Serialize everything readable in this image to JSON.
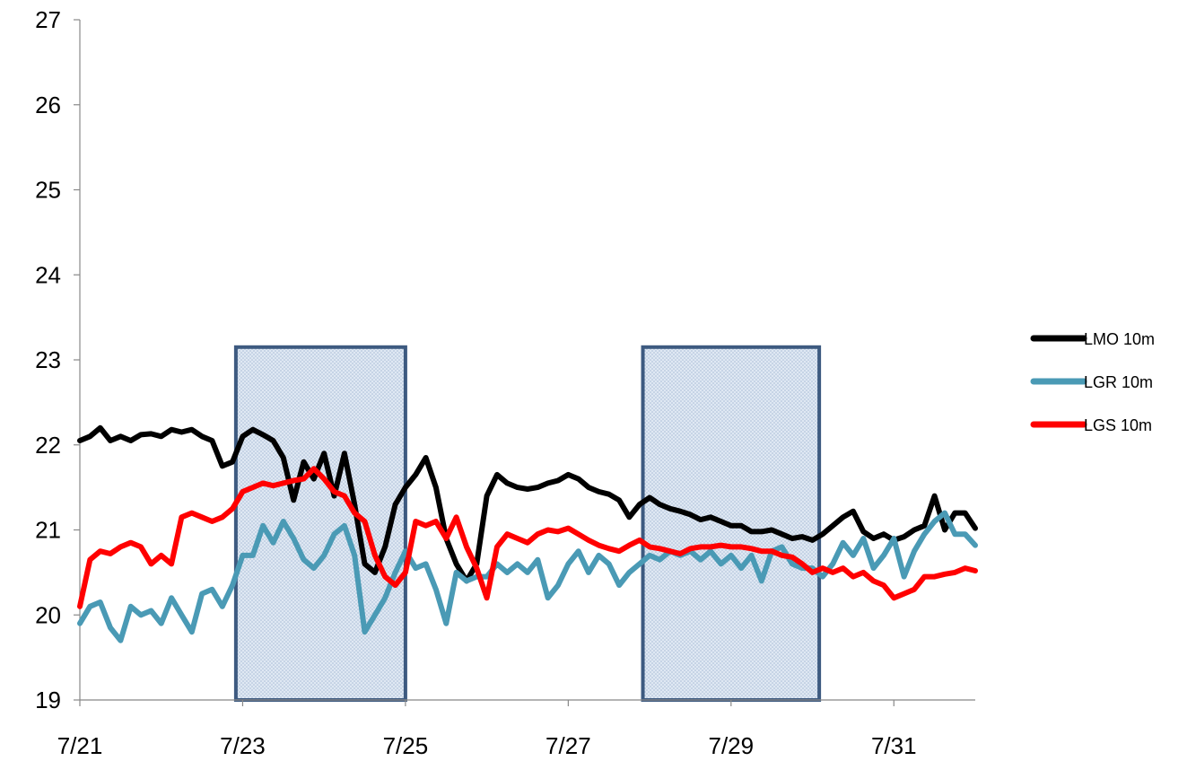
{
  "chart_data": {
    "type": "line",
    "title": "",
    "xlabel": "",
    "ylabel": "",
    "x_ticks": [
      "7/21",
      "7/23",
      "7/25",
      "7/27",
      "7/29",
      "7/31"
    ],
    "y_ticks": [
      "19",
      "20",
      "21",
      "22",
      "23",
      "24",
      "25",
      "26",
      "27"
    ],
    "xlim": [
      "7/21",
      "8/1"
    ],
    "ylim": [
      19,
      27
    ],
    "grid": false,
    "legend_position": "right",
    "highlight_regions": [
      {
        "x_start": "7/22 22:00",
        "x_end": "7/25",
        "y_top": 23.15
      },
      {
        "x_start": "7/27 22:00",
        "x_end": "7/30 02:00",
        "y_top": 23.15
      }
    ],
    "series": [
      {
        "name": "LMO 10m",
        "color": "#000000",
        "points": [
          [
            "7/21 00:00",
            22.05
          ],
          [
            "7/21 03:00",
            22.1
          ],
          [
            "7/21 06:00",
            22.2
          ],
          [
            "7/21 09:00",
            22.05
          ],
          [
            "7/21 12:00",
            22.1
          ],
          [
            "7/21 15:00",
            22.05
          ],
          [
            "7/21 18:00",
            22.12
          ],
          [
            "7/21 21:00",
            22.13
          ],
          [
            "7/22 00:00",
            22.1
          ],
          [
            "7/22 03:00",
            22.18
          ],
          [
            "7/22 06:00",
            22.15
          ],
          [
            "7/22 09:00",
            22.18
          ],
          [
            "7/22 12:00",
            22.1
          ],
          [
            "7/22 15:00",
            22.05
          ],
          [
            "7/22 18:00",
            21.75
          ],
          [
            "7/22 21:00",
            21.8
          ],
          [
            "7/23 00:00",
            22.1
          ],
          [
            "7/23 03:00",
            22.18
          ],
          [
            "7/23 06:00",
            22.12
          ],
          [
            "7/23 09:00",
            22.05
          ],
          [
            "7/23 12:00",
            21.85
          ],
          [
            "7/23 15:00",
            21.35
          ],
          [
            "7/23 18:00",
            21.8
          ],
          [
            "7/23 21:00",
            21.6
          ],
          [
            "7/24 00:00",
            21.9
          ],
          [
            "7/24 03:00",
            21.4
          ],
          [
            "7/24 06:00",
            21.9
          ],
          [
            "7/24 09:00",
            21.3
          ],
          [
            "7/24 12:00",
            20.6
          ],
          [
            "7/24 15:00",
            20.5
          ],
          [
            "7/24 18:00",
            20.8
          ],
          [
            "7/24 21:00",
            21.3
          ],
          [
            "7/25 00:00",
            21.5
          ],
          [
            "7/25 03:00",
            21.65
          ],
          [
            "7/25 06:00",
            21.85
          ],
          [
            "7/25 09:00",
            21.5
          ],
          [
            "7/25 12:00",
            20.9
          ],
          [
            "7/25 15:00",
            20.6
          ],
          [
            "7/25 18:00",
            20.4
          ],
          [
            "7/25 21:00",
            20.6
          ],
          [
            "7/26 00:00",
            21.4
          ],
          [
            "7/26 03:00",
            21.65
          ],
          [
            "7/26 06:00",
            21.55
          ],
          [
            "7/26 09:00",
            21.5
          ],
          [
            "7/26 12:00",
            21.48
          ],
          [
            "7/26 15:00",
            21.5
          ],
          [
            "7/26 18:00",
            21.55
          ],
          [
            "7/26 21:00",
            21.58
          ],
          [
            "7/27 00:00",
            21.65
          ],
          [
            "7/27 03:00",
            21.6
          ],
          [
            "7/27 06:00",
            21.5
          ],
          [
            "7/27 09:00",
            21.45
          ],
          [
            "7/27 12:00",
            21.42
          ],
          [
            "7/27 15:00",
            21.35
          ],
          [
            "7/27 18:00",
            21.15
          ],
          [
            "7/27 21:00",
            21.3
          ],
          [
            "7/28 00:00",
            21.38
          ],
          [
            "7/28 03:00",
            21.3
          ],
          [
            "7/28 06:00",
            21.25
          ],
          [
            "7/28 09:00",
            21.22
          ],
          [
            "7/28 12:00",
            21.18
          ],
          [
            "7/28 15:00",
            21.12
          ],
          [
            "7/28 18:00",
            21.15
          ],
          [
            "7/28 21:00",
            21.1
          ],
          [
            "7/29 00:00",
            21.05
          ],
          [
            "7/29 03:00",
            21.05
          ],
          [
            "7/29 06:00",
            20.98
          ],
          [
            "7/29 09:00",
            20.98
          ],
          [
            "7/29 12:00",
            21.0
          ],
          [
            "7/29 15:00",
            20.95
          ],
          [
            "7/29 18:00",
            20.9
          ],
          [
            "7/29 21:00",
            20.92
          ],
          [
            "7/30 00:00",
            20.88
          ],
          [
            "7/30 03:00",
            20.95
          ],
          [
            "7/30 06:00",
            21.05
          ],
          [
            "7/30 09:00",
            21.15
          ],
          [
            "7/30 12:00",
            21.22
          ],
          [
            "7/30 15:00",
            20.98
          ],
          [
            "7/30 18:00",
            20.9
          ],
          [
            "7/30 21:00",
            20.95
          ],
          [
            "7/31 00:00",
            20.88
          ],
          [
            "7/31 03:00",
            20.92
          ],
          [
            "7/31 06:00",
            21.0
          ],
          [
            "7/31 09:00",
            21.05
          ],
          [
            "7/31 12:00",
            21.4
          ],
          [
            "7/31 15:00",
            21.0
          ],
          [
            "7/31 18:00",
            21.2
          ],
          [
            "7/31 21:00",
            21.2
          ],
          [
            "8/1 00:00",
            21.02
          ]
        ]
      },
      {
        "name": "LGR 10m",
        "color": "#4a9ab5",
        "points": [
          [
            "7/21 00:00",
            19.9
          ],
          [
            "7/21 03:00",
            20.1
          ],
          [
            "7/21 06:00",
            20.15
          ],
          [
            "7/21 09:00",
            19.85
          ],
          [
            "7/21 12:00",
            19.7
          ],
          [
            "7/21 15:00",
            20.1
          ],
          [
            "7/21 18:00",
            20.0
          ],
          [
            "7/21 21:00",
            20.05
          ],
          [
            "7/22 00:00",
            19.9
          ],
          [
            "7/22 03:00",
            20.2
          ],
          [
            "7/22 06:00",
            20.0
          ],
          [
            "7/22 09:00",
            19.8
          ],
          [
            "7/22 12:00",
            20.25
          ],
          [
            "7/22 15:00",
            20.3
          ],
          [
            "7/22 18:00",
            20.1
          ],
          [
            "7/22 21:00",
            20.35
          ],
          [
            "7/23 00:00",
            20.7
          ],
          [
            "7/23 03:00",
            20.7
          ],
          [
            "7/23 06:00",
            21.05
          ],
          [
            "7/23 09:00",
            20.85
          ],
          [
            "7/23 12:00",
            21.1
          ],
          [
            "7/23 15:00",
            20.9
          ],
          [
            "7/23 18:00",
            20.65
          ],
          [
            "7/23 21:00",
            20.55
          ],
          [
            "7/24 00:00",
            20.7
          ],
          [
            "7/24 03:00",
            20.95
          ],
          [
            "7/24 06:00",
            21.05
          ],
          [
            "7/24 09:00",
            20.7
          ],
          [
            "7/24 12:00",
            19.8
          ],
          [
            "7/24 15:00",
            20.0
          ],
          [
            "7/24 18:00",
            20.2
          ],
          [
            "7/24 21:00",
            20.5
          ],
          [
            "7/25 00:00",
            20.75
          ],
          [
            "7/25 03:00",
            20.55
          ],
          [
            "7/25 06:00",
            20.6
          ],
          [
            "7/25 09:00",
            20.3
          ],
          [
            "7/25 12:00",
            19.9
          ],
          [
            "7/25 15:00",
            20.5
          ],
          [
            "7/25 18:00",
            20.4
          ],
          [
            "7/25 21:00",
            20.45
          ],
          [
            "7/26 00:00",
            20.45
          ],
          [
            "7/26 03:00",
            20.6
          ],
          [
            "7/26 06:00",
            20.5
          ],
          [
            "7/26 09:00",
            20.6
          ],
          [
            "7/26 12:00",
            20.5
          ],
          [
            "7/26 15:00",
            20.65
          ],
          [
            "7/26 18:00",
            20.2
          ],
          [
            "7/26 21:00",
            20.35
          ],
          [
            "7/27 00:00",
            20.6
          ],
          [
            "7/27 03:00",
            20.75
          ],
          [
            "7/27 06:00",
            20.5
          ],
          [
            "7/27 09:00",
            20.7
          ],
          [
            "7/27 12:00",
            20.6
          ],
          [
            "7/27 15:00",
            20.35
          ],
          [
            "7/27 18:00",
            20.5
          ],
          [
            "7/27 21:00",
            20.6
          ],
          [
            "7/28 00:00",
            20.7
          ],
          [
            "7/28 03:00",
            20.65
          ],
          [
            "7/28 06:00",
            20.75
          ],
          [
            "7/28 09:00",
            20.7
          ],
          [
            "7/28 12:00",
            20.75
          ],
          [
            "7/28 15:00",
            20.65
          ],
          [
            "7/28 18:00",
            20.75
          ],
          [
            "7/28 21:00",
            20.6
          ],
          [
            "7/29 00:00",
            20.7
          ],
          [
            "7/29 03:00",
            20.55
          ],
          [
            "7/29 06:00",
            20.7
          ],
          [
            "7/29 09:00",
            20.4
          ],
          [
            "7/29 12:00",
            20.75
          ],
          [
            "7/29 15:00",
            20.8
          ],
          [
            "7/29 18:00",
            20.6
          ],
          [
            "7/29 21:00",
            20.55
          ],
          [
            "7/30 00:00",
            20.55
          ],
          [
            "7/30 03:00",
            20.45
          ],
          [
            "7/30 06:00",
            20.6
          ],
          [
            "7/30 09:00",
            20.85
          ],
          [
            "7/30 12:00",
            20.7
          ],
          [
            "7/30 15:00",
            20.9
          ],
          [
            "7/30 18:00",
            20.55
          ],
          [
            "7/30 21:00",
            20.7
          ],
          [
            "7/31 00:00",
            20.9
          ],
          [
            "7/31 03:00",
            20.45
          ],
          [
            "7/31 06:00",
            20.75
          ],
          [
            "7/31 09:00",
            20.95
          ],
          [
            "7/31 12:00",
            21.1
          ],
          [
            "7/31 15:00",
            21.2
          ],
          [
            "7/31 18:00",
            20.95
          ],
          [
            "7/31 21:00",
            20.95
          ],
          [
            "8/1 00:00",
            20.82
          ]
        ]
      },
      {
        "name": "LGS 10m",
        "color": "#ff0000",
        "points": [
          [
            "7/21 00:00",
            20.1
          ],
          [
            "7/21 03:00",
            20.65
          ],
          [
            "7/21 06:00",
            20.75
          ],
          [
            "7/21 09:00",
            20.72
          ],
          [
            "7/21 12:00",
            20.8
          ],
          [
            "7/21 15:00",
            20.85
          ],
          [
            "7/21 18:00",
            20.8
          ],
          [
            "7/21 21:00",
            20.6
          ],
          [
            "7/22 00:00",
            20.7
          ],
          [
            "7/22 03:00",
            20.6
          ],
          [
            "7/22 06:00",
            21.15
          ],
          [
            "7/22 09:00",
            21.2
          ],
          [
            "7/22 12:00",
            21.15
          ],
          [
            "7/22 15:00",
            21.1
          ],
          [
            "7/22 18:00",
            21.15
          ],
          [
            "7/22 21:00",
            21.25
          ],
          [
            "7/23 00:00",
            21.45
          ],
          [
            "7/23 03:00",
            21.5
          ],
          [
            "7/23 06:00",
            21.55
          ],
          [
            "7/23 09:00",
            21.52
          ],
          [
            "7/23 12:00",
            21.55
          ],
          [
            "7/23 15:00",
            21.58
          ],
          [
            "7/23 18:00",
            21.6
          ],
          [
            "7/23 21:00",
            21.72
          ],
          [
            "7/24 00:00",
            21.6
          ],
          [
            "7/24 03:00",
            21.45
          ],
          [
            "7/24 06:00",
            21.4
          ],
          [
            "7/24 09:00",
            21.2
          ],
          [
            "7/24 12:00",
            21.1
          ],
          [
            "7/24 15:00",
            20.7
          ],
          [
            "7/24 18:00",
            20.45
          ],
          [
            "7/24 21:00",
            20.35
          ],
          [
            "7/25 00:00",
            20.5
          ],
          [
            "7/25 03:00",
            21.1
          ],
          [
            "7/25 06:00",
            21.05
          ],
          [
            "7/25 09:00",
            21.1
          ],
          [
            "7/25 12:00",
            20.9
          ],
          [
            "7/25 15:00",
            21.15
          ],
          [
            "7/25 18:00",
            20.8
          ],
          [
            "7/25 21:00",
            20.55
          ],
          [
            "7/26 00:00",
            20.2
          ],
          [
            "7/26 03:00",
            20.8
          ],
          [
            "7/26 06:00",
            20.95
          ],
          [
            "7/26 09:00",
            20.9
          ],
          [
            "7/26 12:00",
            20.85
          ],
          [
            "7/26 15:00",
            20.95
          ],
          [
            "7/26 18:00",
            21.0
          ],
          [
            "7/26 21:00",
            20.98
          ],
          [
            "7/27 00:00",
            21.02
          ],
          [
            "7/27 03:00",
            20.95
          ],
          [
            "7/27 06:00",
            20.88
          ],
          [
            "7/27 09:00",
            20.82
          ],
          [
            "7/27 12:00",
            20.78
          ],
          [
            "7/27 15:00",
            20.75
          ],
          [
            "7/27 18:00",
            20.82
          ],
          [
            "7/27 21:00",
            20.88
          ],
          [
            "7/28 00:00",
            20.8
          ],
          [
            "7/28 03:00",
            20.78
          ],
          [
            "7/28 06:00",
            20.75
          ],
          [
            "7/28 09:00",
            20.72
          ],
          [
            "7/28 12:00",
            20.78
          ],
          [
            "7/28 15:00",
            20.8
          ],
          [
            "7/28 18:00",
            20.8
          ],
          [
            "7/28 21:00",
            20.82
          ],
          [
            "7/29 00:00",
            20.8
          ],
          [
            "7/29 03:00",
            20.8
          ],
          [
            "7/29 06:00",
            20.78
          ],
          [
            "7/29 09:00",
            20.75
          ],
          [
            "7/29 12:00",
            20.75
          ],
          [
            "7/29 15:00",
            20.7
          ],
          [
            "7/29 18:00",
            20.68
          ],
          [
            "7/29 21:00",
            20.6
          ],
          [
            "7/30 00:00",
            20.5
          ],
          [
            "7/30 03:00",
            20.55
          ],
          [
            "7/30 06:00",
            20.5
          ],
          [
            "7/30 09:00",
            20.55
          ],
          [
            "7/30 12:00",
            20.45
          ],
          [
            "7/30 15:00",
            20.5
          ],
          [
            "7/30 18:00",
            20.4
          ],
          [
            "7/30 21:00",
            20.35
          ],
          [
            "7/31 00:00",
            20.2
          ],
          [
            "7/31 03:00",
            20.25
          ],
          [
            "7/31 06:00",
            20.3
          ],
          [
            "7/31 09:00",
            20.45
          ],
          [
            "7/31 12:00",
            20.45
          ],
          [
            "7/31 15:00",
            20.48
          ],
          [
            "7/31 18:00",
            20.5
          ],
          [
            "7/31 21:00",
            20.55
          ],
          [
            "8/1 00:00",
            20.52
          ]
        ]
      }
    ]
  }
}
